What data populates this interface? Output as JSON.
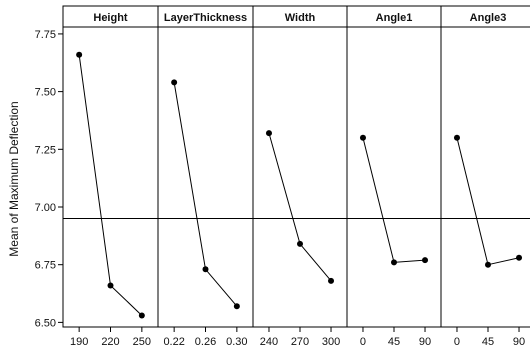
{
  "chart_data": {
    "type": "line",
    "ylabel": "Mean of Maximum Deflection",
    "ylim": [
      6.48,
      7.78
    ],
    "y_ticks": [
      "6.50",
      "6.75",
      "7.00",
      "7.25",
      "7.50",
      "7.75"
    ],
    "reference_line": 6.95,
    "panels": [
      {
        "title": "Height",
        "x": [
          "190",
          "220",
          "250"
        ],
        "values": [
          7.66,
          6.66,
          6.53
        ]
      },
      {
        "title": "LayerThickness",
        "x": [
          "0.22",
          "0.26",
          "0.30"
        ],
        "values": [
          7.54,
          6.73,
          6.57
        ]
      },
      {
        "title": "Width",
        "x": [
          "240",
          "270",
          "300"
        ],
        "values": [
          7.32,
          6.84,
          6.68
        ]
      },
      {
        "title": "Angle1",
        "x": [
          "0",
          "45",
          "90"
        ],
        "values": [
          7.3,
          6.76,
          6.77
        ]
      },
      {
        "title": "Angle3",
        "x": [
          "0",
          "45",
          "90"
        ],
        "values": [
          7.3,
          6.75,
          6.78
        ]
      }
    ],
    "colors": {
      "line": "#000000",
      "marker": "#000000",
      "frame": "#000000"
    }
  }
}
